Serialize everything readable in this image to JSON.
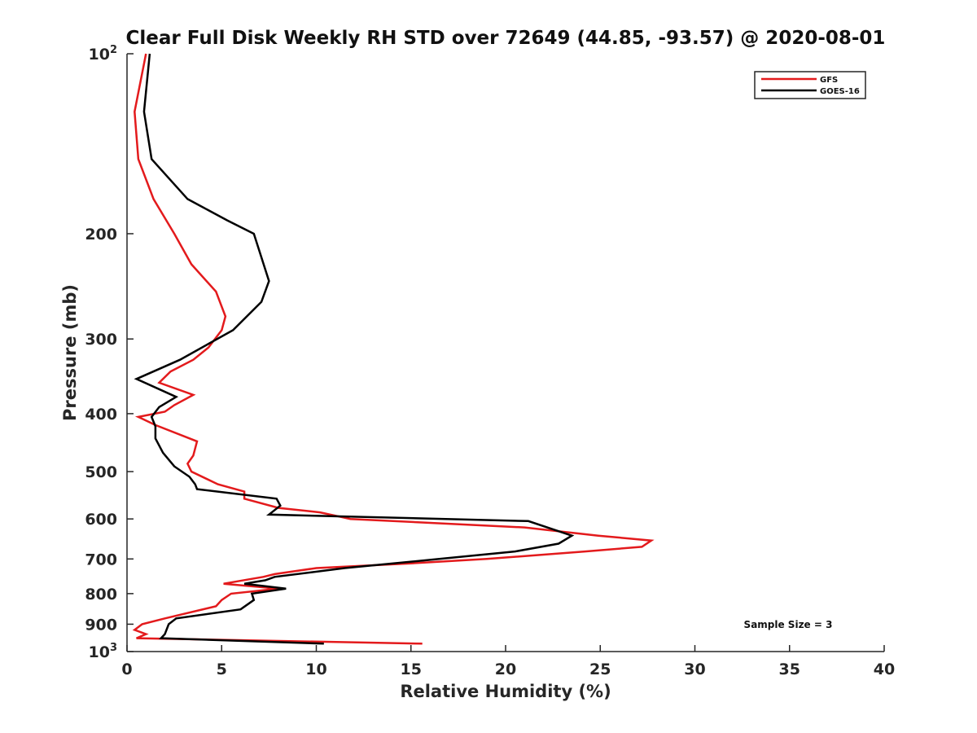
{
  "chart_data": {
    "type": "line",
    "title": "Clear Full Disk Weekly RH STD over 72649 (44.85, -93.57) @ 2020-08-01",
    "xlabel": "Relative Humidity (%)",
    "ylabel": "Pressure (mb)",
    "xlim": [
      0,
      40
    ],
    "ylim": [
      100,
      1000
    ],
    "y_scale": "log",
    "y_reversed": true,
    "x_ticks": [
      0,
      5,
      10,
      15,
      20,
      25,
      30,
      35,
      40
    ],
    "y_ticks": [
      {
        "value": 100,
        "base": "10",
        "exp": "2"
      },
      {
        "value": 200,
        "label": "200"
      },
      {
        "value": 300,
        "label": "300"
      },
      {
        "value": 400,
        "label": "400"
      },
      {
        "value": 500,
        "label": "500"
      },
      {
        "value": 600,
        "label": "600"
      },
      {
        "value": 700,
        "label": "700"
      },
      {
        "value": 800,
        "label": "800"
      },
      {
        "value": 900,
        "label": "900"
      },
      {
        "value": 1000,
        "base": "10",
        "exp": "3"
      }
    ],
    "grid": false,
    "legend_position": "top-right",
    "annotation": "Sample Size = 3",
    "series": [
      {
        "name": "GFS",
        "color": "#e31a1c",
        "points": [
          [
            1.0,
            100
          ],
          [
            0.4,
            125
          ],
          [
            0.6,
            150
          ],
          [
            1.4,
            175
          ],
          [
            2.5,
            200
          ],
          [
            3.4,
            225
          ],
          [
            4.7,
            250
          ],
          [
            5.2,
            275
          ],
          [
            5.0,
            290
          ],
          [
            4.3,
            310
          ],
          [
            3.5,
            325
          ],
          [
            2.3,
            340
          ],
          [
            1.7,
            355
          ],
          [
            3.5,
            372
          ],
          [
            2.5,
            387
          ],
          [
            2.0,
            397
          ],
          [
            0.6,
            405
          ],
          [
            1.5,
            418
          ],
          [
            3.7,
            445
          ],
          [
            3.5,
            470
          ],
          [
            3.2,
            485
          ],
          [
            3.4,
            500
          ],
          [
            4.8,
            525
          ],
          [
            6.2,
            540
          ],
          [
            6.2,
            555
          ],
          [
            8.0,
            575
          ],
          [
            10.2,
            585
          ],
          [
            11.8,
            600
          ],
          [
            21.0,
            620
          ],
          [
            24.9,
            640
          ],
          [
            27.7,
            652
          ],
          [
            27.2,
            668
          ],
          [
            24.2,
            680
          ],
          [
            19.0,
            700
          ],
          [
            15.0,
            712
          ],
          [
            10.0,
            725
          ],
          [
            7.8,
            742
          ],
          [
            7.2,
            750
          ],
          [
            5.1,
            770
          ],
          [
            8.0,
            785
          ],
          [
            5.5,
            800
          ],
          [
            5.0,
            820
          ],
          [
            4.7,
            840
          ],
          [
            2.0,
            880
          ],
          [
            0.8,
            900
          ],
          [
            0.4,
            920
          ],
          [
            1.0,
            935
          ],
          [
            0.5,
            950
          ],
          [
            15.6,
            970
          ]
        ]
      },
      {
        "name": "GOES-16",
        "color": "#000000",
        "points": [
          [
            1.2,
            100
          ],
          [
            0.9,
            125
          ],
          [
            1.3,
            150
          ],
          [
            3.2,
            175
          ],
          [
            5.3,
            190
          ],
          [
            6.7,
            200
          ],
          [
            7.5,
            240
          ],
          [
            7.1,
            260
          ],
          [
            5.6,
            290
          ],
          [
            2.8,
            325
          ],
          [
            0.5,
            350
          ],
          [
            2.6,
            375
          ],
          [
            1.7,
            390
          ],
          [
            1.3,
            405
          ],
          [
            1.5,
            420
          ],
          [
            1.5,
            440
          ],
          [
            1.9,
            465
          ],
          [
            2.5,
            490
          ],
          [
            3.3,
            510
          ],
          [
            3.6,
            525
          ],
          [
            3.7,
            535
          ],
          [
            7.9,
            555
          ],
          [
            8.1,
            570
          ],
          [
            7.5,
            590
          ],
          [
            21.2,
            605
          ],
          [
            23.5,
            640
          ],
          [
            22.8,
            660
          ],
          [
            20.5,
            680
          ],
          [
            16.5,
            700
          ],
          [
            11.5,
            725
          ],
          [
            7.8,
            750
          ],
          [
            7.3,
            760
          ],
          [
            6.2,
            770
          ],
          [
            8.4,
            785
          ],
          [
            6.6,
            800
          ],
          [
            6.7,
            820
          ],
          [
            6.0,
            850
          ],
          [
            2.6,
            880
          ],
          [
            2.2,
            900
          ],
          [
            2.0,
            935
          ],
          [
            1.8,
            950
          ],
          [
            10.4,
            970
          ]
        ]
      }
    ]
  }
}
